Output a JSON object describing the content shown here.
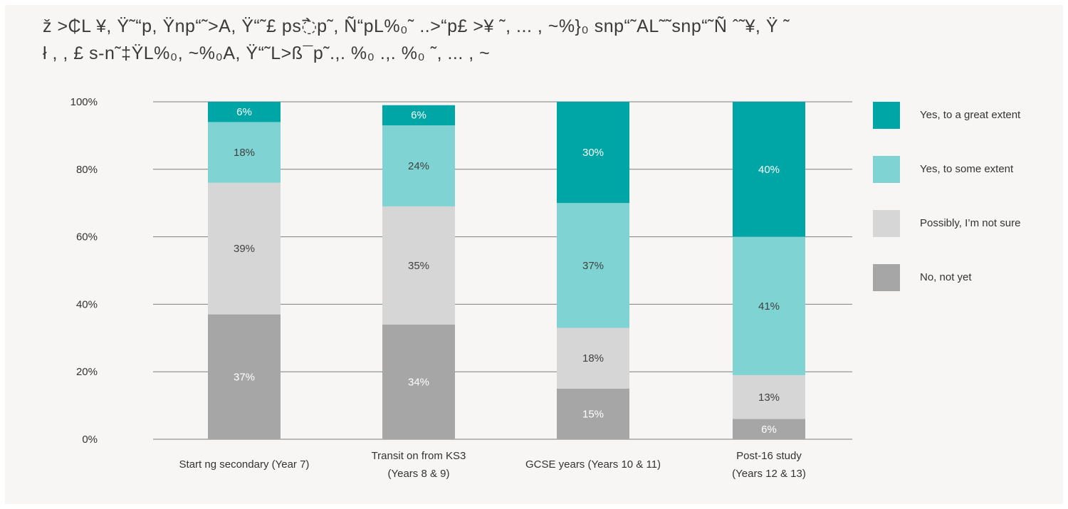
{
  "title_lines": [
    "ž >₵L ¥, Ÿ˜“p, Ÿnp“˜>A, Ÿ“˜£ ps߯p˜, Ñ“pL%₀˜ ..>“p£ >¥ ˜, ... , ~%}₀ snp“˜AL˜˜snp“˜Ñ ˆ˜¥, Ÿ ˜",
    "ł ,   , £ s-n˜‡ŸL%₀, ~%₀A, Ÿ“˜L>ß¯p˜.,. %₀       .,. %₀      ˜, ... , ~"
  ],
  "colors": {
    "great": "#00a6a6",
    "some": "#80d3d3",
    "unsure": "#d6d6d6",
    "no": "#a6a6a6",
    "grid": "#7f7f7f",
    "frame": "#f7f6f4"
  },
  "chart_data": {
    "type": "bar",
    "stacked": true,
    "categories": [
      [
        "Start ng secondary (Year 7)"
      ],
      [
        "Transit on from KS3",
        "(Years 8 & 9)"
      ],
      [
        "GCSE years (Years 10 & 11)"
      ],
      [
        "Post-16 study",
        "(Years 12 & 13)"
      ]
    ],
    "series": [
      {
        "name": "No, not yet",
        "key": "no",
        "values": [
          37,
          34,
          15,
          6
        ],
        "labels": [
          "37%",
          "34%",
          "15%",
          "6%"
        ],
        "label_color": "#ffffff"
      },
      {
        "name": "Possibly, I’m not sure",
        "key": "unsure",
        "values": [
          39,
          35,
          18,
          13
        ],
        "labels": [
          "39%",
          "35%",
          "18%",
          "13%"
        ],
        "label_color": "#404040"
      },
      {
        "name": "Yes, to some extent",
        "key": "some",
        "values": [
          18,
          24,
          37,
          41
        ],
        "labels": [
          "18%",
          "24%",
          "37%",
          "41%"
        ],
        "label_color": "#404040"
      },
      {
        "name": "Yes, to a great extent",
        "key": "great",
        "values": [
          6,
          6,
          30,
          40
        ],
        "labels": [
          "6%",
          "6%",
          "30%",
          "40%"
        ],
        "label_color": "#ffffff"
      }
    ],
    "ylim": [
      0,
      100
    ],
    "yticks": [
      "0%",
      "20%",
      "40%",
      "60%",
      "80%",
      "100%"
    ],
    "grid": true,
    "legend_position": "right"
  },
  "legend": [
    {
      "label": "Yes, to a great extent",
      "color_key": "great"
    },
    {
      "label": "Yes, to some extent",
      "color_key": "some"
    },
    {
      "label": "Possibly, I’m not sure",
      "color_key": "unsure"
    },
    {
      "label": "No, not yet",
      "color_key": "no"
    }
  ]
}
